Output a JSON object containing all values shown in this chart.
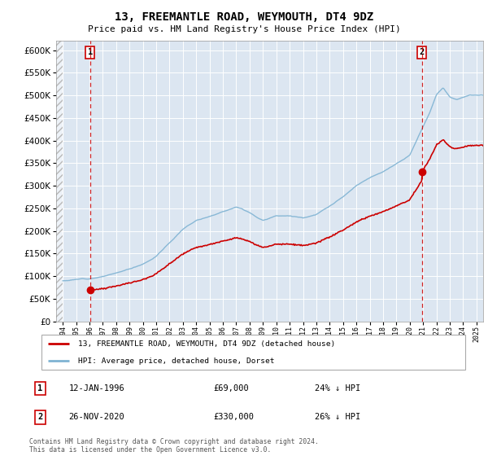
{
  "title": "13, FREEMANTLE ROAD, WEYMOUTH, DT4 9DZ",
  "subtitle": "Price paid vs. HM Land Registry's House Price Index (HPI)",
  "ylim": [
    0,
    620000
  ],
  "xlim_year": [
    1993.5,
    2025.5
  ],
  "yticks": [
    0,
    50000,
    100000,
    150000,
    200000,
    250000,
    300000,
    350000,
    400000,
    450000,
    500000,
    550000,
    600000
  ],
  "ytick_labels": [
    "£0",
    "£50K",
    "£100K",
    "£150K",
    "£200K",
    "£250K",
    "£300K",
    "£350K",
    "£400K",
    "£450K",
    "£500K",
    "£550K",
    "£600K"
  ],
  "plot_bg_color": "#dce6f1",
  "transaction1_year": 1996.04,
  "transaction1_price": 69000,
  "transaction1_label": "12-JAN-1996",
  "transaction1_pct": "24% ↓ HPI",
  "transaction2_year": 2020.9,
  "transaction2_price": 330000,
  "transaction2_label": "26-NOV-2020",
  "transaction2_pct": "26% ↓ HPI",
  "red_line_color": "#cc0000",
  "blue_line_color": "#7fb3d3",
  "dashed_color": "#cc0000",
  "legend_label_red": "13, FREEMANTLE ROAD, WEYMOUTH, DT4 9DZ (detached house)",
  "legend_label_blue": "HPI: Average price, detached house, Dorset",
  "copyright_text": "Contains HM Land Registry data © Crown copyright and database right 2024.\nThis data is licensed under the Open Government Licence v3.0.",
  "font_family": "monospace"
}
